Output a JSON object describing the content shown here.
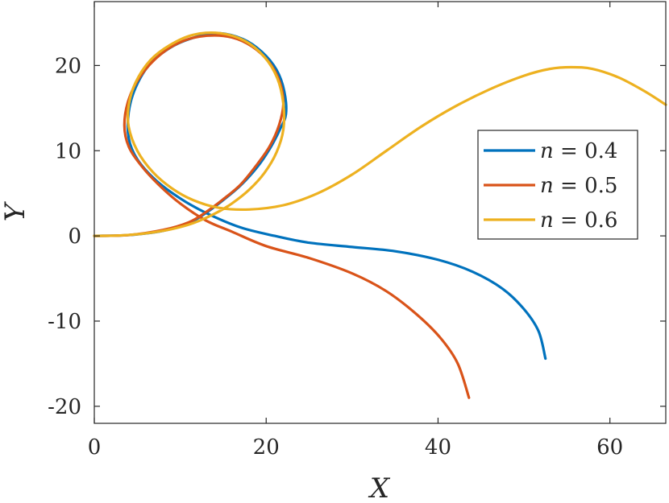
{
  "chart_data": {
    "type": "line",
    "xlabel": "X",
    "ylabel": "Y",
    "xlim": [
      0,
      66.5
    ],
    "ylim": [
      -22,
      27.5
    ],
    "xticks": [
      0,
      20,
      40,
      60
    ],
    "yticks": [
      -20,
      -10,
      0,
      10,
      20
    ],
    "xtick_labels": [
      "0",
      "20",
      "40",
      "60"
    ],
    "ytick_labels": [
      "-20",
      "-10",
      "0",
      "10",
      "20"
    ],
    "grid": false,
    "legend_position": "right",
    "series": [
      {
        "name": "n = 0.4",
        "legend_prefix": "n",
        "legend_value": "0.4",
        "color": "#0072BD",
        "points": [
          [
            0,
            0
          ],
          [
            4,
            0.1
          ],
          [
            8,
            0.6
          ],
          [
            11,
            1.5
          ],
          [
            13,
            2.7
          ],
          [
            15,
            4.2
          ],
          [
            17,
            5.9
          ],
          [
            18.9,
            8
          ],
          [
            20.4,
            10.2
          ],
          [
            21.6,
            12.5
          ],
          [
            22.3,
            14.3
          ],
          [
            22.1,
            17
          ],
          [
            21.2,
            19.5
          ],
          [
            19.5,
            21.6
          ],
          [
            17.3,
            23.1
          ],
          [
            14.5,
            23.8
          ],
          [
            12,
            23.4
          ],
          [
            9.2,
            22.3
          ],
          [
            6.5,
            20.2
          ],
          [
            4.8,
            17.4
          ],
          [
            4,
            14.5
          ],
          [
            4,
            11.5
          ],
          [
            5,
            9
          ],
          [
            7.2,
            6.5
          ],
          [
            10,
            4.4
          ],
          [
            13,
            2.7
          ],
          [
            17,
            1
          ],
          [
            21,
            0
          ],
          [
            25,
            -0.8
          ],
          [
            30,
            -1.3
          ],
          [
            35,
            -1.8
          ],
          [
            40,
            -2.8
          ],
          [
            44,
            -4.2
          ],
          [
            47.5,
            -6.2
          ],
          [
            50,
            -8.6
          ],
          [
            51.7,
            -11.2
          ],
          [
            52.5,
            -14.4
          ]
        ]
      },
      {
        "name": "n = 0.5",
        "legend_prefix": "n",
        "legend_value": "0.5",
        "color": "#D95319",
        "points": [
          [
            0,
            0
          ],
          [
            4,
            0.1
          ],
          [
            8,
            0.7
          ],
          [
            11,
            1.6
          ],
          [
            13,
            2.8
          ],
          [
            15,
            4.3
          ],
          [
            17,
            6
          ],
          [
            18.8,
            8.2
          ],
          [
            20.4,
            10.5
          ],
          [
            21.5,
            13
          ],
          [
            22,
            15.5
          ],
          [
            21.6,
            18
          ],
          [
            20.4,
            20.3
          ],
          [
            18.4,
            22.2
          ],
          [
            16,
            23.3
          ],
          [
            13.2,
            23.5
          ],
          [
            10.4,
            22.9
          ],
          [
            7.7,
            21.3
          ],
          [
            5.4,
            18.8
          ],
          [
            4,
            16
          ],
          [
            3.5,
            13
          ],
          [
            4,
            10.5
          ],
          [
            5.5,
            8.2
          ],
          [
            7.5,
            6
          ],
          [
            10,
            3.8
          ],
          [
            13,
            1.8
          ],
          [
            16,
            0.5
          ],
          [
            20,
            -1.2
          ],
          [
            25,
            -2.6
          ],
          [
            30,
            -4.4
          ],
          [
            34,
            -6.5
          ],
          [
            37.5,
            -9.2
          ],
          [
            40.3,
            -12
          ],
          [
            42.3,
            -15
          ],
          [
            43.6,
            -19
          ]
        ]
      },
      {
        "name": "n = 0.6",
        "legend_prefix": "n",
        "legend_value": "0.6",
        "color": "#EDB120",
        "points": [
          [
            0,
            0
          ],
          [
            3,
            0.05
          ],
          [
            6,
            0.3
          ],
          [
            9,
            0.8
          ],
          [
            11.5,
            1.5
          ],
          [
            14,
            2.6
          ],
          [
            16,
            3.8
          ],
          [
            18,
            5.4
          ],
          [
            19.8,
            7.4
          ],
          [
            21.2,
            9.8
          ],
          [
            22,
            12.5
          ],
          [
            22,
            15.5
          ],
          [
            21.3,
            18.5
          ],
          [
            19.8,
            21
          ],
          [
            17.5,
            22.9
          ],
          [
            14.6,
            23.8
          ],
          [
            11.5,
            23.6
          ],
          [
            8.8,
            22.4
          ],
          [
            6.5,
            20.6
          ],
          [
            4.8,
            18
          ],
          [
            4,
            15.3
          ],
          [
            4,
            12.8
          ],
          [
            5,
            10
          ],
          [
            6.8,
            7.5
          ],
          [
            9,
            5.6
          ],
          [
            11.5,
            4.2
          ],
          [
            14.5,
            3.3
          ],
          [
            18,
            3.1
          ],
          [
            22,
            3.6
          ],
          [
            26,
            5
          ],
          [
            30,
            7.2
          ],
          [
            34,
            10
          ],
          [
            38,
            12.8
          ],
          [
            42,
            15.2
          ],
          [
            46,
            17.2
          ],
          [
            50,
            18.8
          ],
          [
            53,
            19.6
          ],
          [
            55.5,
            19.8
          ],
          [
            58,
            19.6
          ],
          [
            61,
            18.6
          ],
          [
            64,
            17
          ],
          [
            66.5,
            15.4
          ]
        ]
      }
    ]
  }
}
